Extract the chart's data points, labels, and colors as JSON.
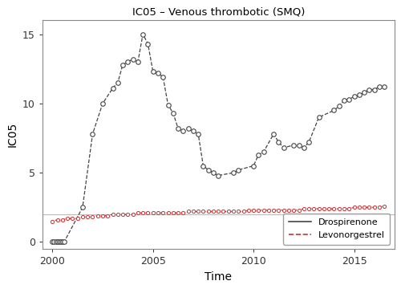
{
  "title": "IC05 – Venous thrombotic (SMQ)",
  "xlabel": "Time",
  "ylabel": "IC05",
  "xlim": [
    1999.5,
    2017.0
  ],
  "ylim": [
    -0.5,
    16
  ],
  "yticks": [
    0,
    5,
    10,
    15
  ],
  "xticks": [
    2000,
    2005,
    2010,
    2015
  ],
  "hline_y": 2.0,
  "hline_color": "#bbbbbb",
  "drospirenone_x": [
    2000.0,
    2000.083,
    2000.167,
    2000.25,
    2000.333,
    2000.417,
    2000.5,
    2000.583,
    2001.5,
    2002.0,
    2002.5,
    2003.0,
    2003.25,
    2003.5,
    2003.75,
    2004.0,
    2004.25,
    2004.5,
    2004.75,
    2005.0,
    2005.25,
    2005.5,
    2005.75,
    2006.0,
    2006.25,
    2006.5,
    2006.75,
    2007.0,
    2007.25,
    2007.5,
    2007.75,
    2008.0,
    2008.25,
    2009.0,
    2009.25,
    2010.0,
    2010.25,
    2010.5,
    2011.0,
    2011.25,
    2011.5,
    2012.0,
    2012.25,
    2012.5,
    2012.75,
    2013.25,
    2014.0,
    2014.25,
    2014.5,
    2014.75,
    2015.0,
    2015.25,
    2015.5,
    2015.75,
    2016.0,
    2016.25,
    2016.5
  ],
  "drospirenone_y": [
    0.0,
    0.0,
    0.0,
    0.0,
    0.0,
    0.0,
    0.0,
    0.0,
    2.5,
    7.8,
    10.0,
    11.1,
    11.5,
    12.8,
    13.0,
    13.2,
    13.0,
    15.0,
    14.3,
    12.3,
    12.2,
    11.9,
    9.9,
    9.3,
    8.2,
    8.0,
    8.2,
    8.0,
    7.8,
    5.5,
    5.2,
    5.0,
    4.8,
    5.0,
    5.2,
    5.5,
    6.3,
    6.5,
    7.8,
    7.2,
    6.8,
    7.0,
    7.0,
    6.8,
    7.2,
    9.0,
    9.5,
    9.8,
    10.2,
    10.3,
    10.5,
    10.6,
    10.8,
    11.0,
    11.0,
    11.2,
    11.2
  ],
  "levonorgestrel_x": [
    2000.0,
    2000.25,
    2000.5,
    2000.75,
    2001.0,
    2001.25,
    2001.5,
    2001.75,
    2002.0,
    2002.25,
    2002.5,
    2002.75,
    2003.0,
    2003.25,
    2003.5,
    2003.75,
    2004.0,
    2004.25,
    2004.5,
    2004.75,
    2005.0,
    2005.25,
    2005.5,
    2005.75,
    2006.0,
    2006.25,
    2006.5,
    2006.75,
    2007.0,
    2007.25,
    2007.5,
    2007.75,
    2008.0,
    2008.25,
    2008.5,
    2008.75,
    2009.0,
    2009.25,
    2009.5,
    2009.75,
    2010.0,
    2010.25,
    2010.5,
    2010.75,
    2011.0,
    2011.25,
    2011.5,
    2011.75,
    2012.0,
    2012.25,
    2012.5,
    2012.75,
    2013.0,
    2013.25,
    2013.5,
    2013.75,
    2014.0,
    2014.25,
    2014.5,
    2014.75,
    2015.0,
    2015.25,
    2015.5,
    2015.75,
    2016.0,
    2016.25,
    2016.5
  ],
  "levonorgestrel_y": [
    1.5,
    1.6,
    1.6,
    1.7,
    1.7,
    1.7,
    1.8,
    1.8,
    1.8,
    1.9,
    1.9,
    1.9,
    2.0,
    2.0,
    2.0,
    2.0,
    2.0,
    2.1,
    2.1,
    2.1,
    2.1,
    2.1,
    2.1,
    2.1,
    2.1,
    2.1,
    2.1,
    2.2,
    2.2,
    2.2,
    2.2,
    2.2,
    2.2,
    2.2,
    2.2,
    2.2,
    2.2,
    2.2,
    2.2,
    2.3,
    2.3,
    2.3,
    2.3,
    2.3,
    2.3,
    2.3,
    2.3,
    2.3,
    2.3,
    2.3,
    2.4,
    2.4,
    2.4,
    2.4,
    2.4,
    2.4,
    2.4,
    2.4,
    2.4,
    2.4,
    2.5,
    2.5,
    2.5,
    2.5,
    2.5,
    2.5,
    2.6
  ],
  "drosi_color": "#444444",
  "levo_color": "#cc3333",
  "legend_labels": [
    "Drospirenone",
    "Levonorgestrel"
  ],
  "bg_color": "#ffffff",
  "plot_bg": "#ffffff"
}
